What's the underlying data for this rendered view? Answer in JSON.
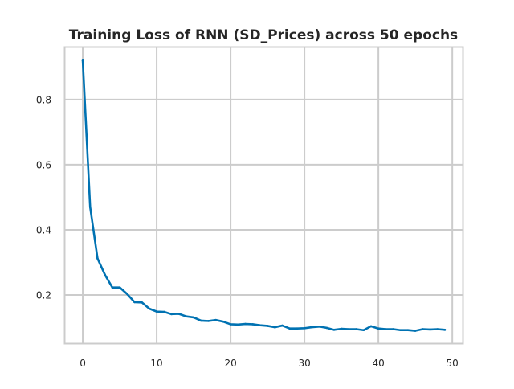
{
  "chart_data": {
    "type": "line",
    "title": "Training Loss of RNN (SD_Prices) across 50 epochs",
    "xlabel": "",
    "ylabel": "",
    "x": [
      0,
      1,
      2,
      3,
      4,
      5,
      6,
      7,
      8,
      9,
      10,
      11,
      12,
      13,
      14,
      15,
      16,
      17,
      18,
      19,
      20,
      21,
      22,
      23,
      24,
      25,
      26,
      27,
      28,
      29,
      30,
      31,
      32,
      33,
      34,
      35,
      36,
      37,
      38,
      39,
      40,
      41,
      42,
      43,
      44,
      45,
      46,
      47,
      48,
      49
    ],
    "series": [
      {
        "values": [
          0.92,
          0.47,
          0.312,
          0.262,
          0.223,
          0.223,
          0.203,
          0.178,
          0.177,
          0.158,
          0.149,
          0.148,
          0.141,
          0.142,
          0.134,
          0.131,
          0.121,
          0.12,
          0.123,
          0.118,
          0.11,
          0.109,
          0.111,
          0.11,
          0.107,
          0.105,
          0.101,
          0.106,
          0.097,
          0.097,
          0.098,
          0.101,
          0.103,
          0.099,
          0.093,
          0.096,
          0.095,
          0.095,
          0.092,
          0.104,
          0.097,
          0.095,
          0.095,
          0.092,
          0.092,
          0.09,
          0.095,
          0.094,
          0.095,
          0.093
        ],
        "color": "#0072b2"
      }
    ],
    "xlim": [
      -2.45,
      51.45
    ],
    "ylim": [
      0.0506,
      0.9614
    ],
    "xticks": [
      0,
      10,
      20,
      30,
      40,
      50
    ],
    "xtick_labels": [
      "0",
      "10",
      "20",
      "30",
      "40",
      "50"
    ],
    "yticks": [
      0.2,
      0.4,
      0.6,
      0.8
    ],
    "ytick_labels": [
      "0.2",
      "0.4",
      "0.6",
      "0.8"
    ],
    "grid": true,
    "colors": {
      "grid": "#cccccc",
      "spine": "#cccccc",
      "line": "#0072b2"
    }
  }
}
